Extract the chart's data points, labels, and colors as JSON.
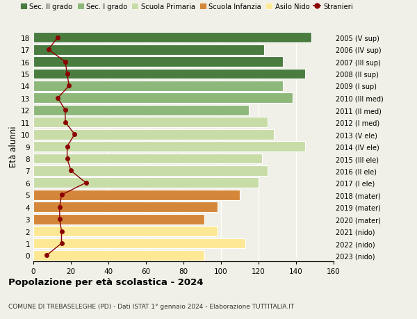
{
  "ages": [
    0,
    1,
    2,
    3,
    4,
    5,
    6,
    7,
    8,
    9,
    10,
    11,
    12,
    13,
    14,
    15,
    16,
    17,
    18
  ],
  "bar_values": [
    91,
    113,
    98,
    91,
    98,
    110,
    120,
    125,
    122,
    145,
    128,
    125,
    115,
    138,
    133,
    145,
    133,
    123,
    148
  ],
  "bar_colors": [
    "#fde896",
    "#fde896",
    "#fde896",
    "#d4873a",
    "#d4873a",
    "#d4873a",
    "#c8dca8",
    "#c8dca8",
    "#c8dca8",
    "#c8dca8",
    "#c8dca8",
    "#c8dca8",
    "#8db87a",
    "#8db87a",
    "#8db87a",
    "#4a7c3f",
    "#4a7c3f",
    "#4a7c3f",
    "#4a7c3f"
  ],
  "stranieri": [
    7,
    15,
    15,
    14,
    14,
    15,
    28,
    20,
    18,
    18,
    22,
    17,
    17,
    13,
    19,
    18,
    17,
    8,
    13
  ],
  "right_labels": [
    "2023 (nido)",
    "2022 (nido)",
    "2021 (nido)",
    "2020 (mater)",
    "2019 (mater)",
    "2018 (mater)",
    "2017 (I ele)",
    "2016 (II ele)",
    "2015 (III ele)",
    "2014 (IV ele)",
    "2013 (V ele)",
    "2012 (I med)",
    "2011 (II med)",
    "2010 (III med)",
    "2009 (I sup)",
    "2008 (II sup)",
    "2007 (III sup)",
    "2006 (IV sup)",
    "2005 (V sup)"
  ],
  "legend_labels": [
    "Sec. II grado",
    "Sec. I grado",
    "Scuola Primaria",
    "Scuola Infanzia",
    "Asilo Nido",
    "Stranieri"
  ],
  "legend_colors": [
    "#4a7c3f",
    "#8db87a",
    "#c8dca8",
    "#d4873a",
    "#fde896",
    "#8b0000"
  ],
  "ylabel": "Età alunni",
  "title": "Popolazione per età scolastica - 2024",
  "subtitle": "COMUNE DI TREBASELEGHE (PD) - Dati ISTAT 1° gennaio 2024 - Elaborazione TUTTITALIA.IT",
  "xlim": [
    0,
    160
  ],
  "xticks": [
    0,
    20,
    40,
    60,
    80,
    100,
    120,
    140,
    160
  ],
  "bg_color": "#f0f0e8",
  "plot_bg_color": "#f0f0e8"
}
